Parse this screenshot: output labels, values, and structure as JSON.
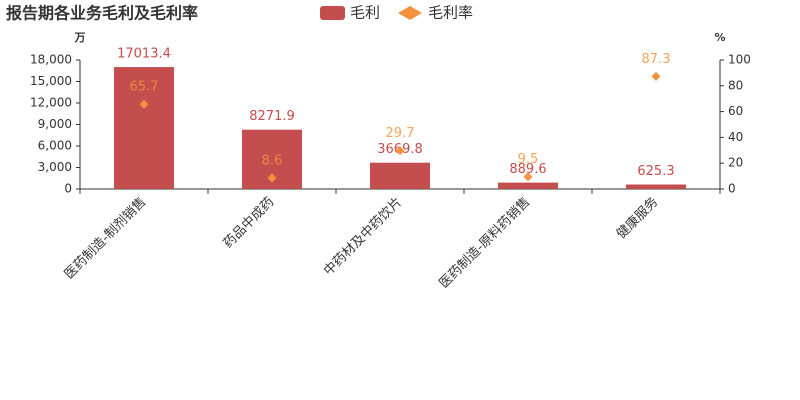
{
  "chart_data": {
    "type": "bar",
    "title": "报告期各业务毛利及毛利率",
    "categories": [
      "医药制造-制剂销售",
      "药品中成药",
      "中药材及中药饮片",
      "医药制造-原料药销售",
      "健康服务"
    ],
    "series": [
      {
        "name": "毛利",
        "type": "bar",
        "color": "#c44d4d",
        "values": [
          17013.4,
          8271.9,
          3669.8,
          889.6,
          625.3
        ]
      },
      {
        "name": "毛利率",
        "type": "scatter",
        "color": "#f5923e",
        "axis": "y2",
        "values": [
          65.7,
          8.6,
          29.7,
          9.5,
          87.3
        ]
      }
    ],
    "y_unit": "万",
    "y2_unit": "%",
    "ylim": [
      0,
      18000
    ],
    "yticks": [
      0,
      {
        "value": 3000,
        "label": "3,000"
      },
      {
        "value": 6000,
        "label": "6,000"
      },
      {
        "value": 9000,
        "label": "9,000"
      },
      {
        "value": 12000,
        "label": "12,000"
      },
      {
        "value": 15000,
        "label": "15,000"
      },
      {
        "value": 18000,
        "label": "18,000"
      }
    ],
    "y2lim": [
      0,
      100
    ],
    "y2ticks": [
      0,
      20,
      40,
      60,
      80,
      100
    ]
  }
}
